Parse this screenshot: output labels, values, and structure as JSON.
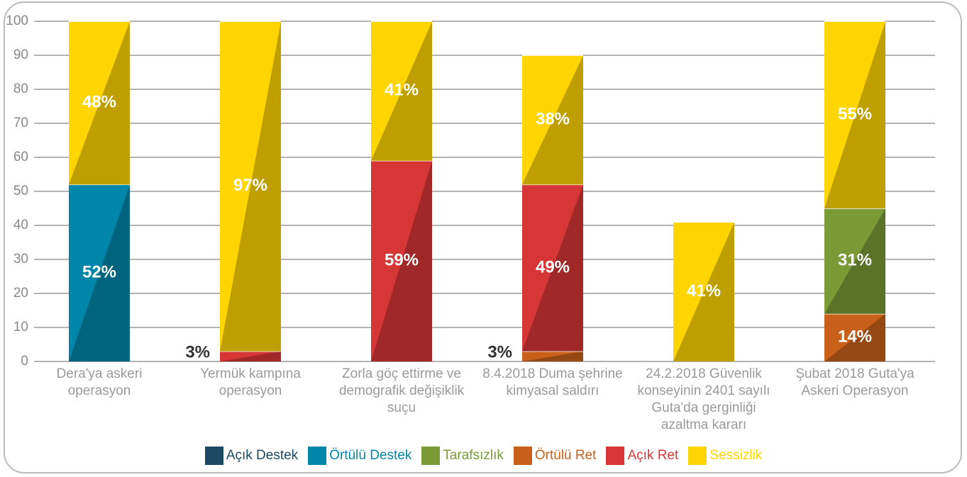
{
  "chart_data": {
    "type": "stacked_bar",
    "categories": [
      "Dera'ya askeri operasyon",
      "Yermük kampına operasyon",
      "Zorla göç ettirme ve demografik değişiklik suçu",
      "8.4.2018 Duma şehrine kimyasal saldırı",
      "24.2.2018 Güvenlik konseyinin 2401 sayılı Guta'da gerginliği azaltma kararı",
      "Şubat 2018 Guta'ya Askeri Operasyon"
    ],
    "series": [
      {
        "name": "Açık Destek",
        "color": "#1d4a63",
        "values": [
          null,
          null,
          null,
          null,
          null,
          null
        ]
      },
      {
        "name": "Örtülü Destek",
        "color": "#0086a8",
        "values": [
          52,
          null,
          null,
          null,
          null,
          null
        ],
        "value_labels": [
          "52%",
          null,
          null,
          null,
          null,
          null
        ]
      },
      {
        "name": "Tarafsızlık",
        "color": "#7a9a36",
        "values": [
          null,
          null,
          null,
          null,
          null,
          31
        ],
        "value_labels": [
          null,
          null,
          null,
          null,
          null,
          "31%"
        ]
      },
      {
        "name": "Örtülü Ret",
        "color": "#c8601a",
        "values": [
          null,
          null,
          null,
          3,
          null,
          14
        ],
        "value_labels": [
          null,
          null,
          null,
          "3%",
          null,
          "14%"
        ]
      },
      {
        "name": "Açık Ret",
        "color": "#d63636",
        "values": [
          null,
          3,
          59,
          49,
          null,
          null
        ],
        "value_labels": [
          null,
          "3%",
          "59%",
          "49%",
          null,
          null
        ]
      },
      {
        "name": "Sessizlik",
        "color": "#ffd500",
        "values": [
          48,
          97,
          41,
          38,
          41,
          55
        ],
        "value_labels": [
          "48%",
          "97%",
          "41%",
          "38%",
          "41%",
          "55%"
        ]
      }
    ],
    "ylim": [
      0,
      100
    ],
    "yticks": [
      0,
      10,
      20,
      30,
      40,
      50,
      60,
      70,
      80,
      90,
      100
    ],
    "grid": true,
    "legend": "bottom"
  }
}
